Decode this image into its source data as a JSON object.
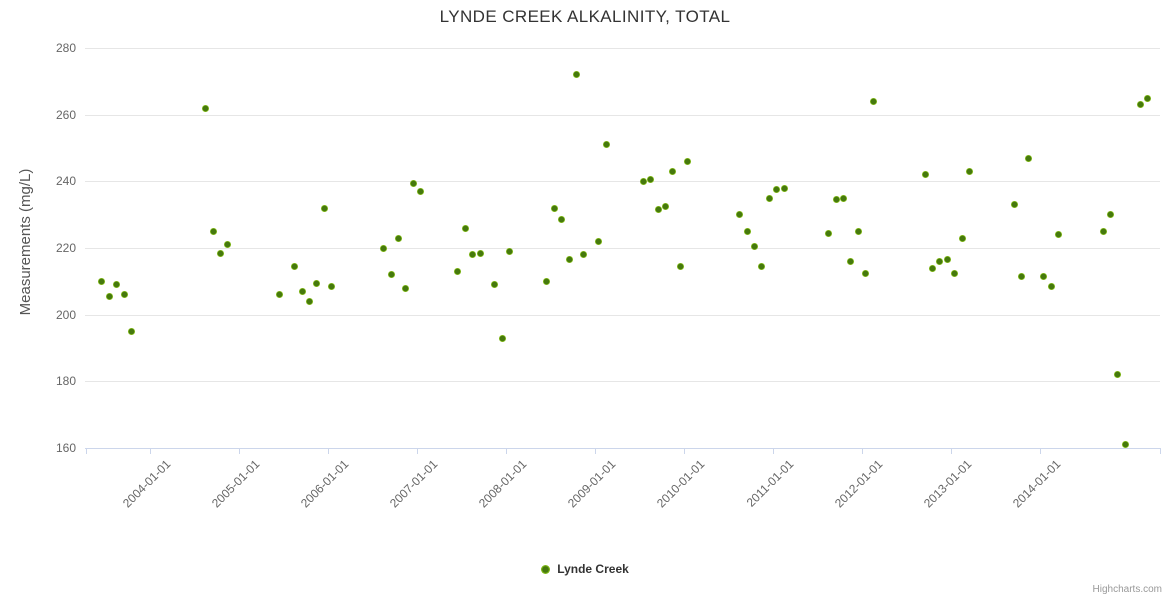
{
  "chart_data": {
    "type": "scatter",
    "title": "LYNDE CREEK ALKALINITY, TOTAL",
    "xlabel": "",
    "ylabel": "Measurements (mg/L)",
    "ylim": [
      160,
      280
    ],
    "yticks": [
      160,
      180,
      200,
      220,
      240,
      260,
      280
    ],
    "xtick_labels": [
      "2004-01-01",
      "2005-01-01",
      "2006-01-01",
      "2007-01-01",
      "2008-01-01",
      "2009-01-01",
      "2010-01-01",
      "2011-01-01",
      "2012-01-01",
      "2013-01-01",
      "2014-01-01"
    ],
    "x_range": [
      "2003-04",
      "2015-04"
    ],
    "grid": "horizontal-only",
    "legend_position": "bottom-center",
    "series": [
      {
        "name": "Lynde Creek",
        "marker_outer_color": "#7cb513",
        "marker_inner_color": "#46790e",
        "points": [
          [
            "2003-06",
            210
          ],
          [
            "2003-07",
            205.5
          ],
          [
            "2003-08",
            209
          ],
          [
            "2003-09",
            206
          ],
          [
            "2003-10",
            195
          ],
          [
            "2004-08",
            262
          ],
          [
            "2004-09",
            225
          ],
          [
            "2004-10",
            218.5
          ],
          [
            "2004-11",
            221
          ],
          [
            "2005-06",
            206
          ],
          [
            "2005-08",
            214.5
          ],
          [
            "2005-09",
            207
          ],
          [
            "2005-10",
            204
          ],
          [
            "2005-11",
            209.5
          ],
          [
            "2005-12",
            232
          ],
          [
            "2006-01",
            208.5
          ],
          [
            "2006-08",
            220
          ],
          [
            "2006-09",
            212
          ],
          [
            "2006-10",
            223
          ],
          [
            "2006-11",
            208
          ],
          [
            "2006-12",
            239.5
          ],
          [
            "2007-01",
            237
          ],
          [
            "2007-06",
            213
          ],
          [
            "2007-07",
            226
          ],
          [
            "2007-08",
            218
          ],
          [
            "2007-09",
            218.5
          ],
          [
            "2007-11",
            209
          ],
          [
            "2007-12",
            193
          ],
          [
            "2008-01",
            219
          ],
          [
            "2008-06",
            210
          ],
          [
            "2008-07",
            232
          ],
          [
            "2008-08",
            228.5
          ],
          [
            "2008-09",
            216.5
          ],
          [
            "2008-10",
            272
          ],
          [
            "2008-11",
            218
          ],
          [
            "2009-01",
            222
          ],
          [
            "2009-02",
            251
          ],
          [
            "2009-07",
            240
          ],
          [
            "2009-08",
            240.5
          ],
          [
            "2009-09",
            231.5
          ],
          [
            "2009-10",
            232.5
          ],
          [
            "2009-11",
            243
          ],
          [
            "2009-12",
            214.5
          ],
          [
            "2010-01",
            246
          ],
          [
            "2010-08",
            230
          ],
          [
            "2010-09",
            225
          ],
          [
            "2010-10",
            220.5
          ],
          [
            "2010-11",
            214.5
          ],
          [
            "2010-12",
            235
          ],
          [
            "2011-01",
            237.5
          ],
          [
            "2011-02",
            238
          ],
          [
            "2011-08",
            224.5
          ],
          [
            "2011-09",
            234.5
          ],
          [
            "2011-10",
            235
          ],
          [
            "2011-11",
            216
          ],
          [
            "2011-12",
            225
          ],
          [
            "2012-01",
            212.5
          ],
          [
            "2012-02",
            264
          ],
          [
            "2012-09",
            242
          ],
          [
            "2012-10",
            214
          ],
          [
            "2012-11",
            216
          ],
          [
            "2012-12",
            216.5
          ],
          [
            "2013-01",
            212.5
          ],
          [
            "2013-02",
            223
          ],
          [
            "2013-03",
            243
          ],
          [
            "2013-09",
            233
          ],
          [
            "2013-10",
            211.5
          ],
          [
            "2013-11",
            247
          ],
          [
            "2014-01",
            211.5
          ],
          [
            "2014-02",
            208.5
          ],
          [
            "2014-03",
            224
          ],
          [
            "2014-09",
            225
          ],
          [
            "2014-10",
            230
          ],
          [
            "2014-11",
            182
          ],
          [
            "2014-12",
            161
          ],
          [
            "2015-02",
            263
          ],
          [
            "2015-03",
            265
          ]
        ]
      }
    ]
  },
  "legend": {
    "label": "Lynde Creek"
  },
  "credits": {
    "text": "Highcharts.com"
  },
  "colors": {
    "background": "#ffffff",
    "grid_line": "#e6e6e6",
    "tick_mark": "#ccd6eb",
    "title_text": "#333333",
    "axis_label_text": "#666666",
    "y_axis_title_text": "#555555",
    "legend_text": "#333333",
    "credits_text": "#999999",
    "marker_outer": "#7cb513",
    "marker_inner": "#46790e"
  }
}
